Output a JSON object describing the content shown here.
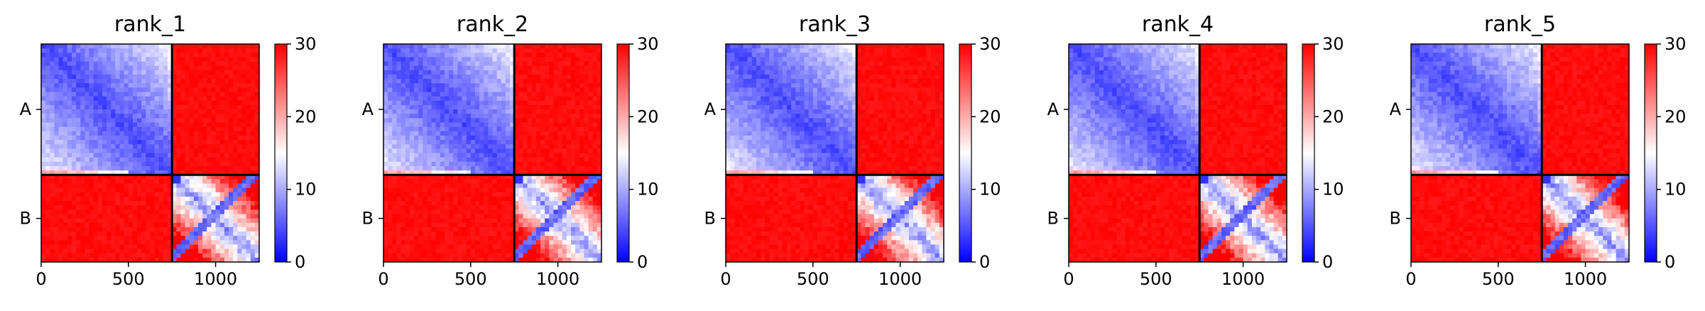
{
  "chart_data": {
    "type": "heatmap",
    "description_colormap": "bwr",
    "colors": {
      "low": "#0000ff",
      "mid": "#ffffff",
      "high": "#ff0000"
    },
    "vmin": 0,
    "vmax": 30,
    "chain_boundary": 750,
    "residue_total": 1250,
    "chains": [
      "A",
      "B"
    ],
    "xticks": [
      0,
      500,
      1000
    ],
    "colorbar_ticks": [
      0,
      10,
      20,
      30
    ],
    "panels": [
      {
        "title": "rank_1"
      },
      {
        "title": "rank_2"
      },
      {
        "title": "rank_3"
      },
      {
        "title": "rank_4"
      },
      {
        "title": "rank_5"
      }
    ]
  }
}
